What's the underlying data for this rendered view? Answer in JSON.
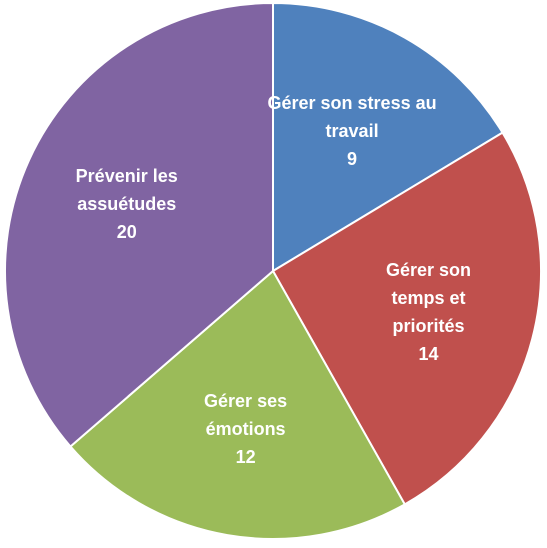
{
  "chart_data": {
    "type": "pie",
    "categories": [
      "Gérer son stress au travail",
      "Gérer son temps et priorités",
      "Gérer ses émotions",
      "Prévenir les assuétudes"
    ],
    "values": [
      9,
      14,
      12,
      20
    ],
    "colors": [
      "#4f81bd",
      "#c0504d",
      "#9bbb59",
      "#8064a2"
    ]
  }
}
